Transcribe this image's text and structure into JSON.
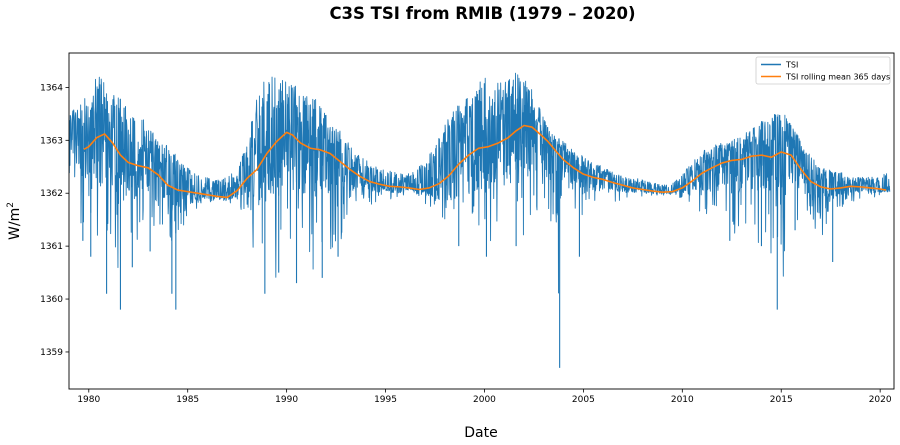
{
  "chart_data": {
    "type": "line",
    "title": "C3S TSI from RMIB (1979 – 2020)",
    "xlabel": "Date",
    "ylabel": "W/m",
    "ylabel_sup": "2",
    "xlim": [
      1979.0,
      2020.7
    ],
    "ylim": [
      1358.3,
      1364.65
    ],
    "x_ticks": [
      1980,
      1985,
      1990,
      1995,
      2000,
      2005,
      2010,
      2015,
      2020
    ],
    "y_ticks": [
      1359,
      1360,
      1361,
      1362,
      1363,
      1364
    ],
    "grid": false,
    "legend_position": "top-right",
    "series": [
      {
        "name": "TSI",
        "color": "#1f77b4",
        "note": "daily values; envelope digitized approximately",
        "x": [
          1979.0,
          1979.5,
          1980.0,
          1980.5,
          1981.0,
          1981.5,
          1982.0,
          1982.5,
          1983.0,
          1983.5,
          1984.0,
          1984.5,
          1985.0,
          1985.5,
          1986.0,
          1986.5,
          1987.0,
          1987.5,
          1988.0,
          1988.5,
          1989.0,
          1989.5,
          1990.0,
          1990.5,
          1991.0,
          1991.5,
          1992.0,
          1992.5,
          1993.0,
          1993.5,
          1994.0,
          1994.5,
          1995.0,
          1995.5,
          1996.0,
          1996.5,
          1997.0,
          1997.5,
          1998.0,
          1998.5,
          1999.0,
          1999.5,
          2000.0,
          2000.5,
          2001.0,
          2001.5,
          2002.0,
          2002.5,
          2003.0,
          2003.5,
          2004.0,
          2004.5,
          2005.0,
          2005.5,
          2006.0,
          2006.5,
          2007.0,
          2007.5,
          2008.0,
          2008.5,
          2009.0,
          2009.5,
          2010.0,
          2010.5,
          2011.0,
          2011.5,
          2012.0,
          2012.5,
          2013.0,
          2013.5,
          2014.0,
          2014.5,
          2015.0,
          2015.5,
          2016.0,
          2016.5,
          2017.0,
          2017.5,
          2018.0,
          2018.5,
          2019.0,
          2019.5,
          2020.0,
          2020.5
        ],
        "y_max": [
          1363.5,
          1363.7,
          1363.9,
          1364.3,
          1364.0,
          1363.8,
          1363.7,
          1363.5,
          1363.3,
          1363.0,
          1362.9,
          1362.7,
          1362.5,
          1362.35,
          1362.3,
          1362.25,
          1362.3,
          1362.45,
          1363.0,
          1363.8,
          1364.3,
          1364.2,
          1364.2,
          1364.0,
          1363.9,
          1363.8,
          1363.5,
          1363.3,
          1363.0,
          1362.8,
          1362.7,
          1362.5,
          1362.45,
          1362.4,
          1362.35,
          1362.45,
          1362.6,
          1362.9,
          1363.3,
          1363.6,
          1363.8,
          1364.0,
          1364.2,
          1364.1,
          1364.1,
          1364.3,
          1364.3,
          1363.9,
          1363.4,
          1363.1,
          1363.0,
          1362.8,
          1362.7,
          1362.6,
          1362.5,
          1362.4,
          1362.35,
          1362.3,
          1362.25,
          1362.2,
          1362.15,
          1362.2,
          1362.35,
          1362.6,
          1362.8,
          1362.9,
          1362.95,
          1363.0,
          1363.1,
          1363.2,
          1363.4,
          1363.5,
          1363.6,
          1363.3,
          1363.0,
          1362.7,
          1362.5,
          1362.45,
          1362.4,
          1362.3,
          1362.3,
          1362.3,
          1362.35,
          1362.4
        ],
        "y_min": [
          1361.6,
          1361.4,
          1361.0,
          1360.8,
          1361.0,
          1360.5,
          1361.2,
          1360.9,
          1361.5,
          1361.0,
          1361.5,
          1359.8,
          1361.8,
          1361.7,
          1361.8,
          1361.8,
          1361.8,
          1361.7,
          1361.6,
          1360.5,
          1361.3,
          1360.3,
          1360.9,
          1360.9,
          1360.8,
          1360.4,
          1361.2,
          1360.4,
          1361.5,
          1361.3,
          1361.6,
          1361.8,
          1361.9,
          1361.85,
          1361.9,
          1361.9,
          1361.8,
          1361.6,
          1361.3,
          1361.2,
          1361.0,
          1361.0,
          1360.9,
          1361.2,
          1361.0,
          1361.3,
          1361.1,
          1361.2,
          1361.5,
          1358.7,
          1361.4,
          1361.6,
          1361.5,
          1361.7,
          1361.7,
          1361.8,
          1361.85,
          1361.9,
          1361.95,
          1361.9,
          1361.95,
          1361.95,
          1361.9,
          1361.8,
          1361.6,
          1361.5,
          1361.4,
          1361.2,
          1361.2,
          1361.3,
          1360.9,
          1360.8,
          1359.8,
          1361.4,
          1361.5,
          1361.6,
          1360.7,
          1361.6,
          1361.7,
          1361.8,
          1361.9,
          1361.9,
          1361.95,
          1362.0
        ],
        "spikes": [
          {
            "x": 1979.7,
            "y": 1361.1
          },
          {
            "x": 1980.1,
            "y": 1360.8
          },
          {
            "x": 1980.9,
            "y": 1360.1
          },
          {
            "x": 1981.6,
            "y": 1359.8
          },
          {
            "x": 1982.2,
            "y": 1360.6
          },
          {
            "x": 1983.1,
            "y": 1360.9
          },
          {
            "x": 1984.2,
            "y": 1360.1
          },
          {
            "x": 1984.4,
            "y": 1359.8
          },
          {
            "x": 1988.9,
            "y": 1360.1
          },
          {
            "x": 1989.6,
            "y": 1360.5
          },
          {
            "x": 1990.5,
            "y": 1360.3
          },
          {
            "x": 1991.8,
            "y": 1360.4
          },
          {
            "x": 1992.6,
            "y": 1360.8
          },
          {
            "x": 1998.7,
            "y": 1361.0
          },
          {
            "x": 2000.1,
            "y": 1360.8
          },
          {
            "x": 2001.6,
            "y": 1361.0
          },
          {
            "x": 2003.8,
            "y": 1358.7
          },
          {
            "x": 2004.8,
            "y": 1360.8
          },
          {
            "x": 2012.4,
            "y": 1361.1
          },
          {
            "x": 2014.0,
            "y": 1361.0
          },
          {
            "x": 2014.8,
            "y": 1359.8
          },
          {
            "x": 2015.7,
            "y": 1361.3
          },
          {
            "x": 2017.6,
            "y": 1360.7
          }
        ]
      },
      {
        "name": "TSI rolling mean 365 days",
        "color": "#ff7f0e",
        "x": [
          1979.75,
          1980.0,
          1980.4,
          1980.8,
          1981.2,
          1981.6,
          1982.0,
          1982.5,
          1983.0,
          1983.5,
          1984.0,
          1984.5,
          1985.0,
          1985.5,
          1986.0,
          1986.5,
          1987.0,
          1987.5,
          1988.0,
          1988.5,
          1989.0,
          1989.5,
          1990.0,
          1990.3,
          1990.7,
          1991.2,
          1991.7,
          1992.2,
          1992.7,
          1993.2,
          1993.7,
          1994.2,
          1994.7,
          1995.2,
          1995.7,
          1996.2,
          1996.7,
          1997.2,
          1997.7,
          1998.2,
          1998.7,
          1999.2,
          1999.7,
          2000.2,
          2000.7,
          2001.2,
          2001.6,
          2002.0,
          2002.4,
          2002.8,
          2003.2,
          2003.6,
          2004.0,
          2004.5,
          2005.0,
          2005.5,
          2006.0,
          2006.5,
          2007.0,
          2007.5,
          2008.0,
          2008.5,
          2009.0,
          2009.5,
          2010.0,
          2010.5,
          2011.0,
          2011.5,
          2012.0,
          2012.5,
          2013.0,
          2013.5,
          2014.0,
          2014.5,
          2015.0,
          2015.5,
          2016.0,
          2016.5,
          2017.0,
          2017.5,
          2018.0,
          2018.5,
          2019.0,
          2019.5,
          2020.0,
          2020.3
        ],
        "values": [
          1362.83,
          1362.88,
          1363.05,
          1363.12,
          1362.95,
          1362.72,
          1362.58,
          1362.52,
          1362.48,
          1362.35,
          1362.15,
          1362.06,
          1362.03,
          1362.0,
          1361.97,
          1361.94,
          1361.92,
          1362.05,
          1362.28,
          1362.45,
          1362.75,
          1362.98,
          1363.15,
          1363.1,
          1362.95,
          1362.85,
          1362.82,
          1362.75,
          1362.6,
          1362.45,
          1362.32,
          1362.22,
          1362.17,
          1362.13,
          1362.12,
          1362.1,
          1362.07,
          1362.1,
          1362.18,
          1362.33,
          1362.55,
          1362.72,
          1362.85,
          1362.88,
          1362.95,
          1363.05,
          1363.18,
          1363.28,
          1363.25,
          1363.12,
          1362.98,
          1362.8,
          1362.63,
          1362.48,
          1362.36,
          1362.3,
          1362.26,
          1362.2,
          1362.15,
          1362.1,
          1362.07,
          1362.04,
          1362.02,
          1362.03,
          1362.1,
          1362.23,
          1362.38,
          1362.48,
          1362.57,
          1362.62,
          1362.64,
          1362.7,
          1362.72,
          1362.68,
          1362.78,
          1362.72,
          1362.45,
          1362.22,
          1362.12,
          1362.08,
          1362.1,
          1362.13,
          1362.12,
          1362.1,
          1362.08,
          1362.06
        ]
      }
    ]
  }
}
